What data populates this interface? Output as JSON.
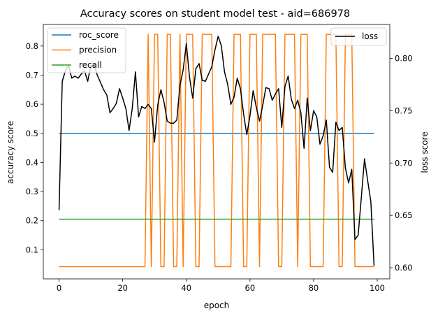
{
  "chart_data": {
    "type": "line",
    "title": "Accuracy scores on student model test - aid=686978",
    "xlabel": "epoch",
    "ylabel_left": "accuracy score",
    "ylabel_right": "loss score",
    "xlim": [
      -4.95,
      103.95
    ],
    "ylim_left": [
      0.0,
      0.874
    ],
    "ylim_right": [
      0.5894,
      0.8323
    ],
    "x_ticks": [
      0,
      20,
      40,
      60,
      80,
      100
    ],
    "y_ticks_left": [
      0.1,
      0.2,
      0.3,
      0.4,
      0.5,
      0.6,
      0.7,
      0.8
    ],
    "y_ticks_right": [
      0.6,
      0.65,
      0.7,
      0.75,
      0.8
    ],
    "legend_left": {
      "placement": "upper left",
      "entries": [
        "roc_score",
        "precision",
        "recall"
      ]
    },
    "legend_right": {
      "placement": "upper right",
      "entries": [
        "loss"
      ]
    },
    "colors": {
      "roc_score": "#1f77b4",
      "precision": "#ff7f0e",
      "recall": "#2ca02c",
      "loss": "#000000"
    },
    "epochs_start": 0,
    "series": [
      {
        "name": "roc_score",
        "axis": "left",
        "constant": 0.5
      },
      {
        "name": "recall",
        "axis": "left",
        "constant": 0.205
      },
      {
        "name": "precision",
        "axis": "left",
        "values": [
          0.042,
          0.042,
          0.042,
          0.042,
          0.042,
          0.042,
          0.042,
          0.042,
          0.042,
          0.042,
          0.042,
          0.042,
          0.042,
          0.042,
          0.042,
          0.042,
          0.042,
          0.042,
          0.042,
          0.042,
          0.042,
          0.042,
          0.042,
          0.042,
          0.042,
          0.042,
          0.042,
          0.042,
          0.84,
          0.042,
          0.84,
          0.84,
          0.042,
          0.042,
          0.84,
          0.84,
          0.042,
          0.042,
          0.84,
          0.042,
          0.84,
          0.84,
          0.84,
          0.042,
          0.042,
          0.84,
          0.84,
          0.84,
          0.84,
          0.042,
          0.042,
          0.042,
          0.042,
          0.042,
          0.042,
          0.84,
          0.84,
          0.84,
          0.042,
          0.042,
          0.84,
          0.84,
          0.84,
          0.042,
          0.84,
          0.84,
          0.84,
          0.84,
          0.84,
          0.042,
          0.042,
          0.84,
          0.84,
          0.84,
          0.84,
          0.042,
          0.84,
          0.84,
          0.84,
          0.042,
          0.042,
          0.042,
          0.042,
          0.042,
          0.84,
          0.84,
          0.84,
          0.84,
          0.042,
          0.042,
          0.84,
          0.84,
          0.84,
          0.042,
          0.042,
          0.042,
          0.042,
          0.042,
          0.042,
          0.042
        ]
      },
      {
        "name": "loss",
        "axis": "right",
        "values": [
          0.655,
          0.778,
          0.788,
          0.793,
          0.781,
          0.783,
          0.781,
          0.785,
          0.788,
          0.778,
          0.793,
          0.794,
          0.784,
          0.777,
          0.77,
          0.765,
          0.748,
          0.752,
          0.757,
          0.771,
          0.762,
          0.752,
          0.731,
          0.752,
          0.787,
          0.744,
          0.754,
          0.752,
          0.756,
          0.752,
          0.72,
          0.755,
          0.77,
          0.758,
          0.74,
          0.738,
          0.738,
          0.741,
          0.774,
          0.789,
          0.814,
          0.782,
          0.762,
          0.79,
          0.795,
          0.779,
          0.778,
          0.785,
          0.792,
          0.808,
          0.821,
          0.812,
          0.787,
          0.775,
          0.756,
          0.763,
          0.781,
          0.771,
          0.747,
          0.727,
          0.745,
          0.769,
          0.753,
          0.74,
          0.755,
          0.772,
          0.771,
          0.76,
          0.766,
          0.771,
          0.734,
          0.773,
          0.783,
          0.761,
          0.752,
          0.76,
          0.748,
          0.714,
          0.762,
          0.731,
          0.75,
          0.744,
          0.718,
          0.726,
          0.741,
          0.696,
          0.691,
          0.739,
          0.731,
          0.734,
          0.695,
          0.681,
          0.694,
          0.627,
          0.631,
          0.667,
          0.704,
          0.683,
          0.663,
          0.602
        ]
      }
    ]
  }
}
